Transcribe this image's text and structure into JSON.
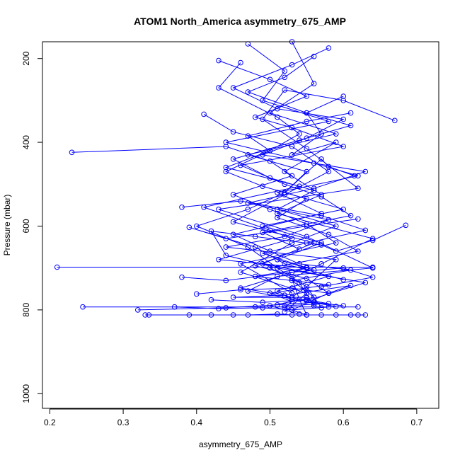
{
  "chart_data": {
    "type": "line",
    "title": "ATOM1 North_America asymmetry_675_AMP",
    "xlabel": "asymmetry_675_AMP",
    "ylabel": "Pressure (mbar)",
    "xlim": [
      0.19,
      0.73
    ],
    "ylim": [
      1035,
      160
    ],
    "y_reversed": true,
    "x_ticks": [
      0.2,
      0.3,
      0.4,
      0.5,
      0.6,
      0.7
    ],
    "x_tick_labels": [
      "0.2",
      "0.3",
      "0.4",
      "0.5",
      "0.6",
      "0.7"
    ],
    "y_ticks": [
      200,
      400,
      600,
      800,
      1000
    ],
    "y_tick_labels": [
      "200",
      "400",
      "600",
      "800",
      "1000"
    ],
    "grid": false,
    "legend": "none",
    "series_color": "#0000ff",
    "marker": "open-circle",
    "series": [
      {
        "x": [
          0.53,
          0.56,
          0.5,
          0.59,
          0.47,
          0.55,
          0.52,
          0.6,
          0.49,
          0.57,
          0.51,
          0.55,
          0.48,
          0.58,
          0.5,
          0.53,
          0.52,
          0.55
        ],
        "y": [
          160,
          260,
          330,
          380,
          430,
          470,
          520,
          560,
          600,
          640,
          680,
          700,
          720,
          740,
          760,
          780,
          795,
          812
        ]
      },
      {
        "x": [
          0.47,
          0.52,
          0.49,
          0.58,
          0.44,
          0.56,
          0.62,
          0.51,
          0.57,
          0.45,
          0.5,
          0.54,
          0.61,
          0.53,
          0.56,
          0.5,
          0.54
        ],
        "y": [
          165,
          230,
          300,
          350,
          400,
          450,
          480,
          520,
          570,
          620,
          660,
          690,
          705,
          730,
          770,
          790,
          810
        ]
      },
      {
        "x": [
          0.58,
          0.53,
          0.45,
          0.51,
          0.6,
          0.55,
          0.49,
          0.63,
          0.56,
          0.47,
          0.58,
          0.52,
          0.44,
          0.59,
          0.55,
          0.57
        ],
        "y": [
          175,
          215,
          270,
          320,
          345,
          390,
          430,
          470,
          510,
          545,
          585,
          625,
          650,
          680,
          745,
          795
        ]
      },
      {
        "x": [
          0.43,
          0.5,
          0.55,
          0.48,
          0.53,
          0.6,
          0.46,
          0.52,
          0.57,
          0.61,
          0.49,
          0.54,
          0.48,
          0.55,
          0.58,
          0.53
        ],
        "y": [
          205,
          250,
          290,
          340,
          365,
          410,
          455,
          500,
          530,
          575,
          615,
          655,
          695,
          725,
          760,
          800
        ]
      },
      {
        "x": [
          0.56,
          0.52,
          0.47,
          0.55,
          0.61,
          0.54,
          0.45,
          0.5,
          0.56,
          0.51,
          0.59,
          0.53,
          0.46,
          0.55,
          0.52
        ],
        "y": [
          195,
          245,
          280,
          330,
          360,
          395,
          440,
          485,
          515,
          560,
          600,
          640,
          710,
          760,
          805
        ]
      },
      {
        "x": [
          0.46,
          0.43,
          0.51,
          0.54,
          0.5,
          0.44,
          0.49,
          0.55,
          0.51,
          0.58,
          0.62,
          0.5,
          0.54,
          0.56
        ],
        "y": [
          210,
          270,
          340,
          380,
          420,
          470,
          505,
          535,
          580,
          620,
          660,
          700,
          735,
          790
        ]
      },
      {
        "x": [
          0.6,
          0.55,
          0.57,
          0.53,
          0.59,
          0.52,
          0.57,
          0.51,
          0.64,
          0.57,
          0.53,
          0.54,
          0.55
        ],
        "y": [
          290,
          330,
          380,
          430,
          400,
          470,
          525,
          570,
          630,
          690,
          725,
          775,
          812
        ]
      },
      {
        "x": [
          0.61,
          0.55,
          0.47,
          0.5,
          0.44,
          0.54,
          0.41,
          0.5,
          0.53,
          0.43,
          0.55,
          0.46,
          0.52,
          0.56
        ],
        "y": [
          330,
          350,
          385,
          420,
          460,
          505,
          555,
          610,
          630,
          680,
          700,
          748,
          765,
          785
        ]
      },
      {
        "x": [
          0.67,
          0.6,
          0.52,
          0.49,
          0.55,
          0.62,
          0.43,
          0.55,
          0.64,
          0.51,
          0.47,
          0.59
        ],
        "y": [
          348,
          300,
          275,
          345,
          415,
          510,
          560,
          625,
          700,
          720,
          755,
          792
        ]
      },
      {
        "x": [
          0.41,
          0.45,
          0.53,
          0.58,
          0.52,
          0.45,
          0.56,
          0.49,
          0.58,
          0.51,
          0.53
        ],
        "y": [
          333,
          375,
          410,
          470,
          525,
          590,
          640,
          690,
          720,
          755,
          775
        ]
      },
      {
        "x": [
          0.23,
          0.44,
          0.5,
          0.53,
          0.45,
          0.5,
          0.55,
          0.59,
          0.46,
          0.53
        ],
        "y": [
          424,
          410,
          445,
          480,
          525,
          560,
          595,
          640,
          690,
          760
        ]
      },
      {
        "x": [
          0.615,
          0.58,
          0.57,
          0.52,
          0.47,
          0.4,
          0.47,
          0.51,
          0.55,
          0.53
        ],
        "y": [
          480,
          458,
          440,
          520,
          560,
          600,
          650,
          700,
          745,
          770
        ]
      },
      {
        "x": [
          0.685,
          0.64,
          0.59,
          0.57,
          0.48,
          0.42,
          0.44,
          0.51,
          0.63,
          0.55
        ],
        "y": [
          598,
          634,
          660,
          645,
          625,
          612,
          670,
          700,
          735,
          778
        ]
      },
      {
        "x": [
          0.62,
          0.55,
          0.44,
          0.39,
          0.48,
          0.52,
          0.6
        ],
        "y": [
          583,
          600,
          630,
          603,
          650,
          690,
          728
        ]
      },
      {
        "x": [
          0.38,
          0.46,
          0.57,
          0.63,
          0.55,
          0.49,
          0.56
        ],
        "y": [
          555,
          540,
          575,
          610,
          640,
          665,
          705
        ]
      },
      {
        "x": [
          0.21,
          0.55,
          0.64
        ],
        "y": [
          698,
          698,
          698
        ]
      },
      {
        "x": [
          0.38,
          0.44,
          0.53,
          0.6,
          0.64,
          0.57
        ],
        "y": [
          722,
          730,
          710,
          700,
          722,
          745
        ]
      },
      {
        "x": [
          0.4,
          0.46,
          0.53,
          0.58,
          0.61,
          0.52,
          0.45,
          0.55
        ],
        "y": [
          762,
          752,
          748,
          760,
          742,
          765,
          770,
          770
        ]
      },
      {
        "x": [
          0.245,
          0.48,
          0.62
        ],
        "y": [
          793,
          793,
          793
        ]
      },
      {
        "x": [
          0.32,
          0.44,
          0.51,
          0.56,
          0.6
        ],
        "y": [
          800,
          795,
          788,
          782,
          790
        ]
      },
      {
        "x": [
          0.33,
          0.45,
          0.55,
          0.63
        ],
        "y": [
          812,
          812,
          812,
          812
        ]
      },
      {
        "x": [
          0.335,
          0.39,
          0.42,
          0.47,
          0.51,
          0.53,
          0.57,
          0.59,
          0.61,
          0.62
        ],
        "y": [
          812,
          812,
          812,
          812,
          810,
          812,
          812,
          812,
          812,
          812
        ]
      },
      {
        "x": [
          0.37,
          0.43,
          0.49,
          0.53,
          0.58
        ],
        "y": [
          793,
          797,
          795,
          800,
          793
        ]
      },
      {
        "x": [
          0.42,
          0.49,
          0.55,
          0.58,
          0.52
        ],
        "y": [
          776,
          782,
          776,
          785,
          790
        ]
      }
    ]
  }
}
